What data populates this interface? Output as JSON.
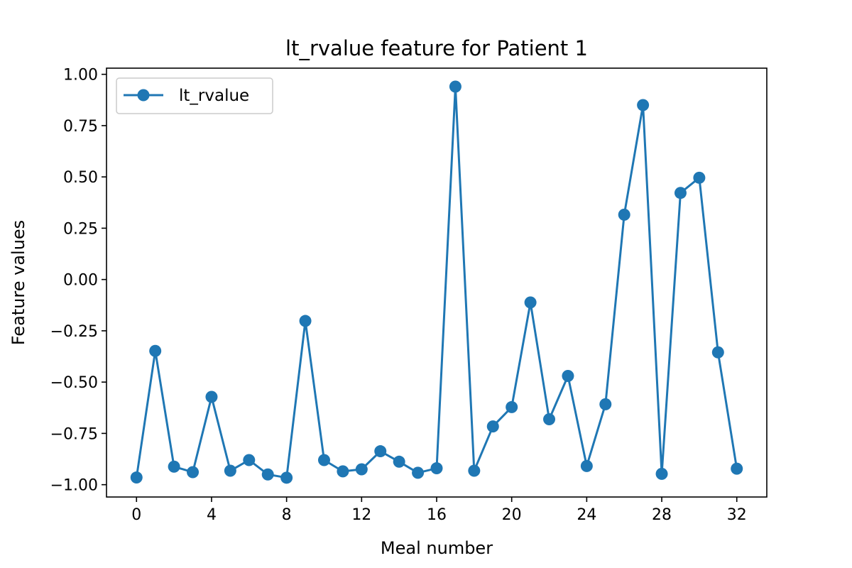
{
  "chart_data": {
    "type": "line",
    "title": "lt_rvalue feature for Patient 1",
    "xlabel": "Meal number",
    "ylabel": "Feature values",
    "xlim": [
      -1.6,
      33.6
    ],
    "ylim": [
      -1.06,
      1.03
    ],
    "xticks": [
      0,
      4,
      8,
      12,
      16,
      20,
      24,
      28,
      32
    ],
    "yticks": [
      -1.0,
      -0.75,
      -0.5,
      -0.25,
      0.0,
      0.25,
      0.5,
      0.75,
      1.0
    ],
    "ytick_labels": [
      "−1.00",
      "−0.75",
      "−0.50",
      "−0.25",
      "0.00",
      "0.25",
      "0.50",
      "0.75",
      "1.00"
    ],
    "grid": false,
    "legend_position": "top-left",
    "series": [
      {
        "name": "lt_rvalue",
        "color": "#1f77b4",
        "marker": "circle",
        "x": [
          0,
          1,
          2,
          3,
          4,
          5,
          6,
          7,
          8,
          9,
          10,
          11,
          12,
          13,
          14,
          15,
          16,
          17,
          18,
          19,
          20,
          21,
          22,
          23,
          24,
          25,
          26,
          27,
          28,
          29,
          30,
          31,
          32
        ],
        "y": [
          -0.965,
          -0.348,
          -0.912,
          -0.939,
          -0.572,
          -0.932,
          -0.88,
          -0.95,
          -0.966,
          -0.202,
          -0.88,
          -0.935,
          -0.925,
          -0.837,
          -0.888,
          -0.942,
          -0.92,
          0.94,
          -0.932,
          -0.716,
          -0.622,
          -0.112,
          -0.681,
          -0.47,
          -0.909,
          -0.608,
          0.316,
          0.85,
          -0.947,
          0.422,
          0.496,
          -0.355,
          -0.922
        ]
      }
    ]
  }
}
